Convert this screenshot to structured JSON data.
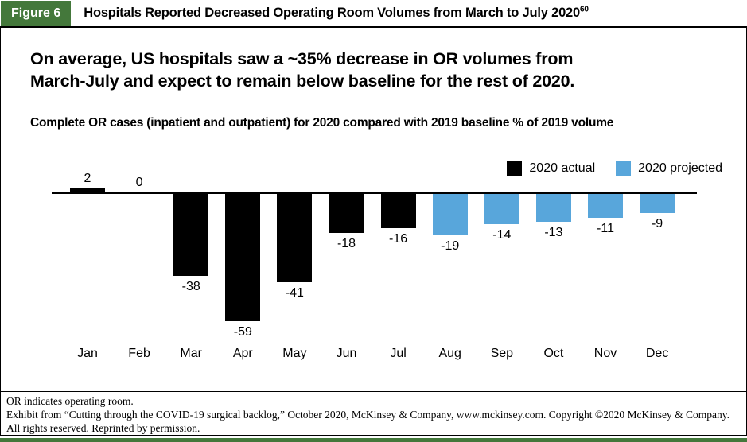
{
  "figure_header": {
    "badge": "Figure 6",
    "title": "Hospitals Reported Decreased Operating Room Volumes from March to July 2020",
    "superscript": "60"
  },
  "headline_lines": [
    "On average, US hospitals saw a ~35% decrease in OR volumes from",
    "March-July and expect to remain below baseline for the rest of 2020."
  ],
  "chart_subtitle": "Complete OR cases (inpatient and outpatient) for 2020 compared with 2019 baseline % of 2019 volume",
  "legend": {
    "actual_label": "2020 actual",
    "projected_label": "2020 projected"
  },
  "chart_data": {
    "type": "bar",
    "title": "Complete OR cases (inpatient and outpatient) for 2020 compared with 2019 baseline % of 2019 volume",
    "categories": [
      "Jan",
      "Feb",
      "Mar",
      "Apr",
      "May",
      "Jun",
      "Jul",
      "Aug",
      "Sep",
      "Oct",
      "Nov",
      "Dec"
    ],
    "values": [
      2,
      0,
      -38,
      -59,
      -41,
      -18,
      -16,
      -19,
      -14,
      -13,
      -11,
      -9
    ],
    "series_of_point": [
      "actual",
      "actual",
      "actual",
      "actual",
      "actual",
      "actual",
      "actual",
      "projected",
      "projected",
      "projected",
      "projected",
      "projected"
    ],
    "series": [
      {
        "name": "2020 actual",
        "color": "#000000"
      },
      {
        "name": "2020 projected",
        "color": "#58A6DB"
      }
    ],
    "xlabel": "",
    "ylabel": "% of 2019 volume",
    "ylim": [
      -70,
      10
    ],
    "baseline": 0,
    "grid": false,
    "data_labels": true,
    "legend_position": "top-right"
  },
  "footnotes": [
    "OR indicates operating room.",
    "Exhibit from “Cutting through the COVID-19 surgical backlog,” October 2020, McKinsey & Company, www.mckinsey.com. Copyright ©2020 McKinsey & Company.",
    "All rights reserved. Reprinted by permission."
  ],
  "colors": {
    "badge_green": "#44783B",
    "bottom_strip_green": "#44783B",
    "actual_black": "#000000",
    "projected_blue": "#58A6DB"
  }
}
